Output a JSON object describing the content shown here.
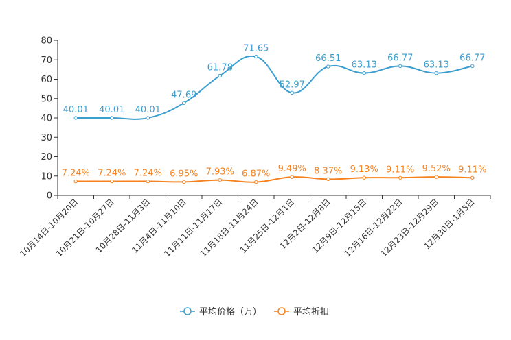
{
  "chart_data": {
    "type": "line",
    "categories": [
      "10月14日-10月20日",
      "10月21日-10月27日",
      "10月28日-11月3日",
      "11月4日-11月10日",
      "11月11日-11月17日",
      "11月18日-11月24日",
      "11月25日-12月1日",
      "12月2日-12月8日",
      "12月9日-12月15日",
      "12月16日-12月22日",
      "12月23日-12月29日",
      "12月30日-1月5日"
    ],
    "ylim": [
      0,
      80
    ],
    "yticks": [
      "0",
      "10",
      "20",
      "30",
      "40",
      "50",
      "60",
      "70",
      "80"
    ],
    "series": [
      {
        "name": "平均价格（万）",
        "color": "#3a9fcf",
        "values": [
          40.01,
          40.01,
          40.01,
          47.69,
          61.78,
          71.65,
          52.97,
          66.51,
          63.13,
          66.77,
          63.13,
          66.77
        ],
        "labels": [
          "40.01",
          "40.01",
          "40.01",
          "47.69",
          "61.78",
          "71.65",
          "52.97",
          "66.51",
          "63.13",
          "66.77",
          "63.13",
          "66.77"
        ]
      },
      {
        "name": "平均折扣",
        "color": "#f5821f",
        "values": [
          7.24,
          7.24,
          7.24,
          6.95,
          7.93,
          6.87,
          9.49,
          8.37,
          9.13,
          9.11,
          9.52,
          9.11
        ],
        "labels": [
          "7.24%",
          "7.24%",
          "7.24%",
          "6.95%",
          "7.93%",
          "6.87%",
          "9.49%",
          "8.37%",
          "9.13%",
          "9.11%",
          "9.52%",
          "9.11%"
        ]
      }
    ]
  }
}
